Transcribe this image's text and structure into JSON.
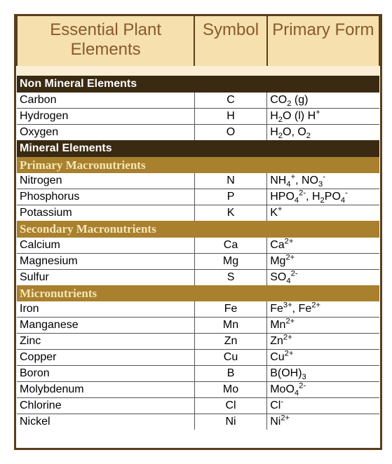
{
  "header": {
    "elements": "Essential Plant Elements",
    "symbol": "Symbol",
    "form": "Primary Form"
  },
  "colors": {
    "header_bg": "#f6e0ae",
    "header_text": "#8a5a2b",
    "border": "#5a3e1a",
    "spacer_bg": "#faefd4",
    "dark_bg": "#3a2a12",
    "dark_text": "#ffffff",
    "gold_bg": "#a9802e",
    "gold_text": "#f5e6b8",
    "row_bg": "#ffffff",
    "grid": "#555555"
  },
  "fontsizes": {
    "header": 24,
    "section_gold": 17,
    "data": 16
  },
  "columns_pct": [
    49,
    20,
    31
  ],
  "sections": [
    {
      "type": "spacer"
    },
    {
      "type": "dark",
      "label": "Non Mineral Elements"
    },
    {
      "type": "row",
      "topline": false,
      "name": "Carbon",
      "symbol": "C",
      "form_html": "CO<sub>2</sub> (g)"
    },
    {
      "type": "row",
      "topline": true,
      "name": "Hydrogen",
      "symbol": "H",
      "form_html": "H<sub>2</sub>O (l) H<sup>+</sup>"
    },
    {
      "type": "row",
      "topline": true,
      "name": "Oxygen",
      "symbol": "O",
      "form_html": "H<sub>2</sub>O, O<sub>2</sub>"
    },
    {
      "type": "dark",
      "label": "Mineral Elements"
    },
    {
      "type": "gold",
      "label": "Primary Macronutrients"
    },
    {
      "type": "row",
      "topline": false,
      "name": "Nitrogen",
      "symbol": "N",
      "form_html": "NH<sub>4</sub><sup>+</sup>, NO<sub>3</sub><sup>-</sup>"
    },
    {
      "type": "row",
      "topline": true,
      "name": "Phosphorus",
      "symbol": "P",
      "form_html": "HPO<sub>4</sub><sup>2-</sup>, H<sub>2</sub>PO<sub>4</sub><sup>-</sup>"
    },
    {
      "type": "row",
      "topline": true,
      "name": "Potassium",
      "symbol": "K",
      "form_html": "K<sup>+</sup>"
    },
    {
      "type": "gold",
      "label": "Secondary Macronutrients"
    },
    {
      "type": "row",
      "topline": false,
      "name": "Calcium",
      "symbol": "Ca",
      "form_html": "Ca<sup>2+</sup>"
    },
    {
      "type": "row",
      "topline": true,
      "name": "Magnesium",
      "symbol": "Mg",
      "form_html": "Mg<sup>2+</sup>"
    },
    {
      "type": "row",
      "topline": true,
      "name": "Sulfur",
      "symbol": "S",
      "form_html": "SO<sub>4</sub><sup>2-</sup>"
    },
    {
      "type": "gold",
      "label": "Micronutrients"
    },
    {
      "type": "row",
      "topline": false,
      "name": "Iron",
      "symbol": "Fe",
      "form_html": "Fe<sup>3+</sup>, Fe<sup>2+</sup>"
    },
    {
      "type": "row",
      "topline": true,
      "name": "Manganese",
      "symbol": "Mn",
      "form_html": "Mn<sup>2+</sup>"
    },
    {
      "type": "row",
      "topline": true,
      "name": "Zinc",
      "symbol": "Zn",
      "form_html": "Zn<sup>2+</sup>"
    },
    {
      "type": "row",
      "topline": true,
      "name": "Copper",
      "symbol": "Cu",
      "form_html": "Cu<sup>2+</sup>"
    },
    {
      "type": "row",
      "topline": true,
      "name": "Boron",
      "symbol": "B",
      "form_html": "B(OH)<sub>3</sub>"
    },
    {
      "type": "row",
      "topline": true,
      "name": "Molybdenum",
      "symbol": "Mo",
      "form_html": "MoO<sub>4</sub><sup>2-</sup>"
    },
    {
      "type": "row",
      "topline": true,
      "name": "Chlorine",
      "symbol": "Cl",
      "form_html": "Cl<sup>-</sup>"
    },
    {
      "type": "row",
      "topline": true,
      "name": "Nickel",
      "symbol": "Ni",
      "form_html": "Ni<sup>2+</sup>"
    },
    {
      "type": "bottom-spacer"
    }
  ]
}
